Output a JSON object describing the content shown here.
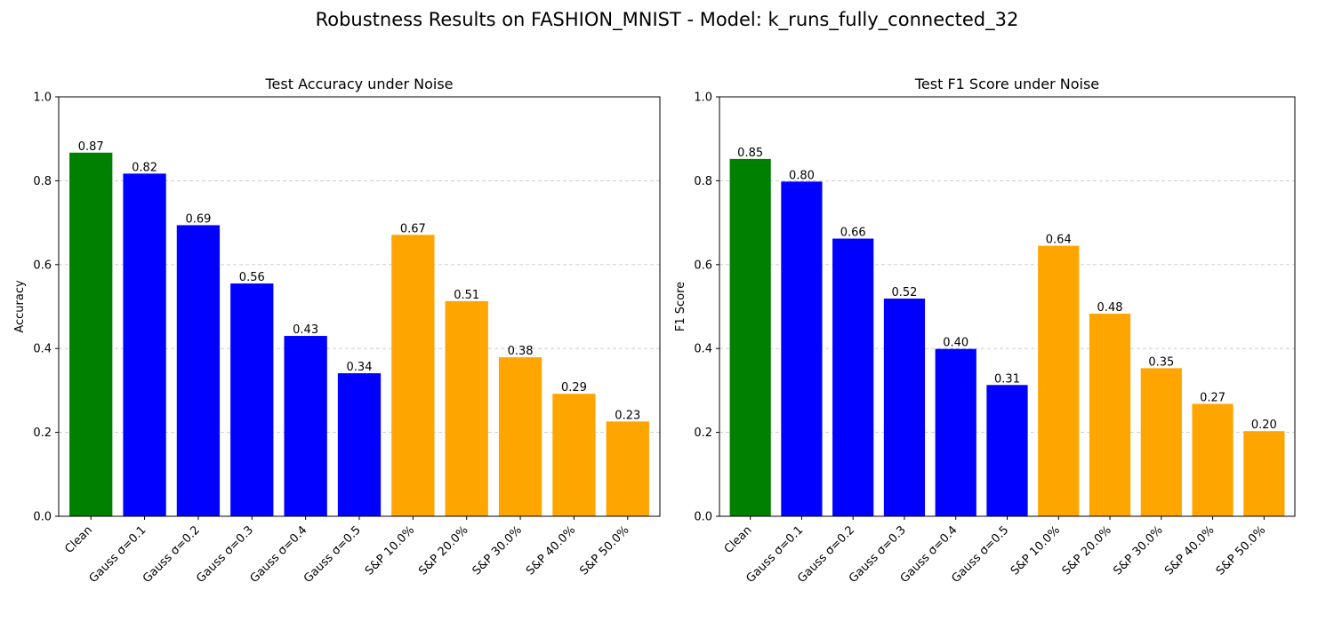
{
  "figure": {
    "suptitle": "Robustness Results on FASHION_MNIST - Model: k_runs_fully_connected_32"
  },
  "chart_data": [
    {
      "type": "bar",
      "title": "Test Accuracy under Noise",
      "xlabel": "",
      "ylabel": "Accuracy",
      "ylim": [
        0,
        1.0
      ],
      "yticks": [
        "0.0",
        "0.2",
        "0.4",
        "0.6",
        "0.8",
        "1.0"
      ],
      "grid": "y-dashed",
      "categories": [
        "Clean",
        "Gauss σ=0.1",
        "Gauss σ=0.2",
        "Gauss σ=0.3",
        "Gauss σ=0.4",
        "Gauss σ=0.5",
        "S&P 10.0%",
        "S&P 20.0%",
        "S&P 30.0%",
        "S&P 40.0%",
        "S&P 50.0%"
      ],
      "values": [
        0.867,
        0.817,
        0.694,
        0.555,
        0.43,
        0.341,
        0.671,
        0.513,
        0.379,
        0.292,
        0.226
      ],
      "labels": [
        "0.87",
        "0.82",
        "0.69",
        "0.56",
        "0.43",
        "0.34",
        "0.67",
        "0.51",
        "0.38",
        "0.29",
        "0.23"
      ],
      "colors": [
        "#008000",
        "#0000ff",
        "#0000ff",
        "#0000ff",
        "#0000ff",
        "#0000ff",
        "#ffa500",
        "#ffa500",
        "#ffa500",
        "#ffa500",
        "#ffa500"
      ]
    },
    {
      "type": "bar",
      "title": "Test F1 Score under Noise",
      "xlabel": "",
      "ylabel": "F1 Score",
      "ylim": [
        0,
        1.0
      ],
      "yticks": [
        "0.0",
        "0.2",
        "0.4",
        "0.6",
        "0.8",
        "1.0"
      ],
      "grid": "y-dashed",
      "categories": [
        "Clean",
        "Gauss σ=0.1",
        "Gauss σ=0.2",
        "Gauss σ=0.3",
        "Gauss σ=0.4",
        "Gauss σ=0.5",
        "S&P 10.0%",
        "S&P 20.0%",
        "S&P 30.0%",
        "S&P 40.0%",
        "S&P 50.0%"
      ],
      "values": [
        0.852,
        0.798,
        0.662,
        0.519,
        0.399,
        0.313,
        0.645,
        0.483,
        0.353,
        0.268,
        0.203
      ],
      "labels": [
        "0.85",
        "0.80",
        "0.66",
        "0.52",
        "0.40",
        "0.31",
        "0.64",
        "0.48",
        "0.35",
        "0.27",
        "0.20"
      ],
      "colors": [
        "#008000",
        "#0000ff",
        "#0000ff",
        "#0000ff",
        "#0000ff",
        "#0000ff",
        "#ffa500",
        "#ffa500",
        "#ffa500",
        "#ffa500",
        "#ffa500"
      ]
    }
  ]
}
